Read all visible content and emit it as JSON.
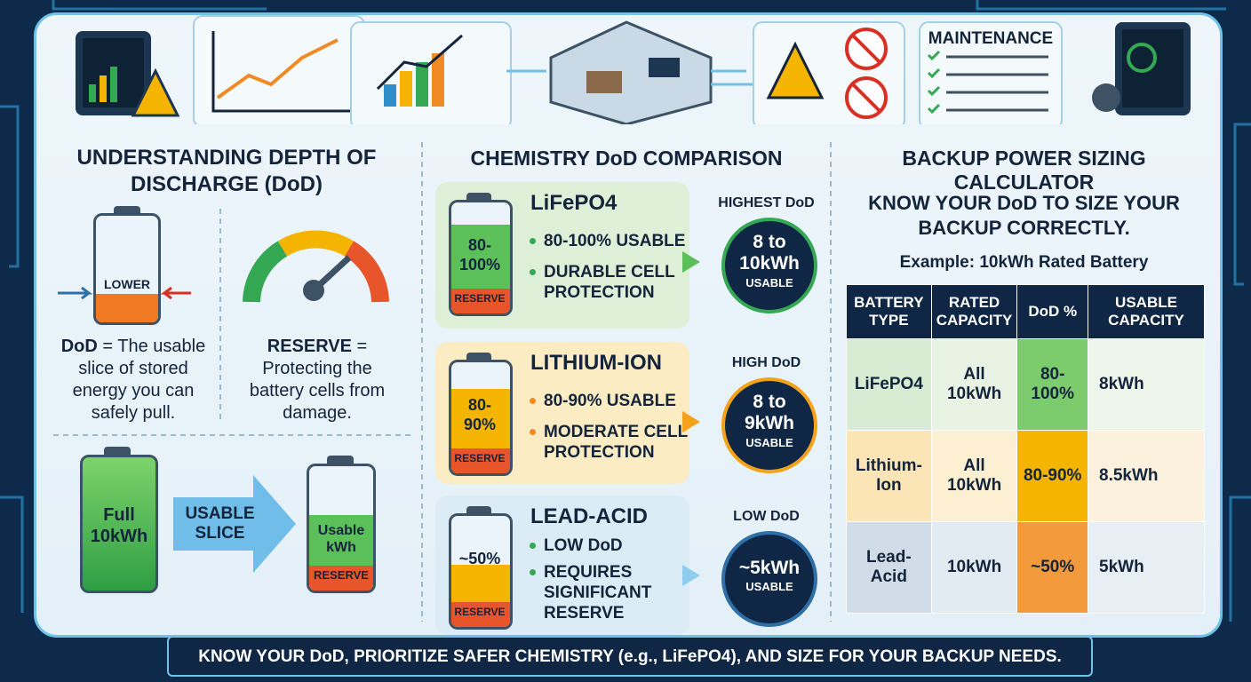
{
  "header": {
    "maintenance_label": "MAINTENANCE"
  },
  "left": {
    "title": "UNDERSTANDING DEPTH OF DISCHARGE (DoD)",
    "battery_label": "LOWER",
    "dod_term": "DoD",
    "dod_definition": "= The usable slice of stored energy you can safely pull.",
    "reserve_term": "RESERVE",
    "reserve_definition": "= Protecting the battery cells from damage.",
    "full_label": "Full 10kWh",
    "arrow_label": "USABLE SLICE",
    "usable_label": "Usable kWh",
    "reserve_label": "RESERVE"
  },
  "middle": {
    "title": "CHEMISTRY DoD COMPARISON",
    "cards": [
      {
        "name": "LiFePO4",
        "battery_percent": "80-100%",
        "reserve": "RESERVE",
        "bullets": [
          "80-100% USABLE",
          "DURABLE CELL PROTECTION"
        ],
        "rating": "HIGHEST DoD",
        "usable": "8 to 10kWh",
        "usable_caption": "USABLE"
      },
      {
        "name": "LITHIUM-ION",
        "battery_percent": "80-90%",
        "reserve": "RESERVE",
        "bullets": [
          "80-90% USABLE",
          "MODERATE CELL PROTECTION"
        ],
        "rating": "HIGH DoD",
        "usable": "8 to 9kWh",
        "usable_caption": "USABLE"
      },
      {
        "name": "LEAD-ACID",
        "battery_percent": "~50%",
        "reserve": "RESERVE",
        "bullets": [
          "LOW DoD",
          "REQUIRES SIGNIFICANT RESERVE"
        ],
        "rating": "LOW DoD",
        "usable": "~5kWh",
        "usable_caption": "USABLE"
      }
    ]
  },
  "right": {
    "title": "BACKUP POWER SIZING CALCULATOR",
    "subtitle": "KNOW YOUR DoD TO SIZE YOUR BACKUP CORRECTLY.",
    "example": "Example: 10kWh Rated Battery",
    "table": {
      "header": [
        "BATTERY TYPE",
        "RATED CAPACITY",
        "DoD %",
        "USABLE CAPACITY"
      ],
      "rows": [
        [
          "LiFePO4",
          "All 10kWh",
          "80-100%",
          "8kWh"
        ],
        [
          "Lithium-Ion",
          "All 10kWh",
          "80-90%",
          "8.5kWh"
        ],
        [
          "Lead-Acid",
          "10kWh",
          "~50%",
          "5kWh"
        ]
      ]
    }
  },
  "footer": {
    "text": "KNOW YOUR DoD, PRIORITIZE SAFER CHEMISTRY (e.g., LiFePO4), AND SIZE FOR YOUR BACKUP NEEDS."
  }
}
